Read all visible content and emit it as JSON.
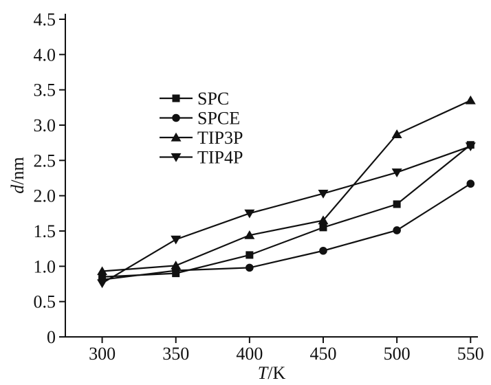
{
  "chart_data": {
    "type": "line",
    "title": "",
    "xlabel_var": "T",
    "xlabel_unit": "/K",
    "ylabel_var": "d",
    "ylabel_unit": "/nm",
    "xlim": [
      275,
      555
    ],
    "ylim": [
      0,
      4.5
    ],
    "x": [
      300,
      350,
      400,
      450,
      500,
      550
    ],
    "xtick_labels": [
      "300",
      "350",
      "400",
      "450",
      "500",
      "550"
    ],
    "ytick_values": [
      0,
      0.5,
      1.0,
      1.5,
      2.0,
      2.5,
      3.0,
      3.5,
      4.0,
      4.5
    ],
    "ytick_labels": [
      "0",
      "0.5",
      "1.0",
      "1.5",
      "2.0",
      "2.5",
      "3.0",
      "3.5",
      "4.0",
      "4.5"
    ],
    "grid": false,
    "legend_position": "upper-left-inside",
    "line_color": "#111111",
    "series": [
      {
        "name": "SPC",
        "marker": "square",
        "values": [
          0.85,
          0.9,
          1.16,
          1.55,
          1.88,
          2.72
        ]
      },
      {
        "name": "SPCE",
        "marker": "circle",
        "values": [
          0.81,
          0.94,
          0.98,
          1.22,
          1.51,
          2.17
        ]
      },
      {
        "name": "TIP3P",
        "marker": "triangle-up",
        "values": [
          0.93,
          1.01,
          1.44,
          1.65,
          2.87,
          3.35
        ]
      },
      {
        "name": "TIP4P",
        "marker": "triangle-down",
        "values": [
          0.76,
          1.38,
          1.75,
          2.03,
          2.33,
          2.7
        ]
      }
    ]
  }
}
